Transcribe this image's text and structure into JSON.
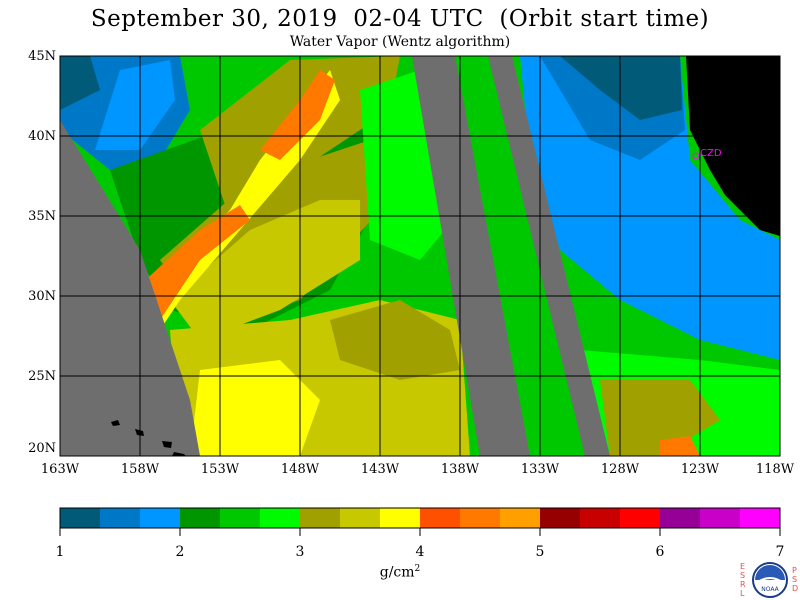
{
  "title": "September 30, 2019  02-04 UTC  (Orbit start time)",
  "subtitle": "Water Vapor (Wentz algorithm)",
  "map": {
    "lat_labels": [
      "45N",
      "40N",
      "35N",
      "30N",
      "25N",
      "20N"
    ],
    "lon_labels": [
      "163W",
      "158W",
      "153W",
      "148W",
      "143W",
      "138W",
      "133W",
      "128W",
      "123W",
      "118W"
    ],
    "lat_range": [
      20,
      45
    ],
    "lon_range": [
      -163,
      -118
    ],
    "station_label": "CZD",
    "colors": {
      "no_data": "#6e6e6e",
      "land": "#000000",
      "grid": "#000000",
      "station": "#ff00ff"
    }
  },
  "colorbar": {
    "min": 1,
    "max": 7,
    "ticks": [
      "1",
      "2",
      "3",
      "4",
      "5",
      "6",
      "7"
    ],
    "unit_base": "g/cm",
    "unit_sup": "2",
    "colors": [
      "#005a78",
      "#0078c8",
      "#0096ff",
      "#009600",
      "#00c800",
      "#00fa00",
      "#a0a000",
      "#c8c800",
      "#ffff00",
      "#ff5000",
      "#ff7800",
      "#ffa000",
      "#960000",
      "#c80000",
      "#ff0000",
      "#960096",
      "#c800c8",
      "#ff00ff"
    ]
  },
  "logo": {
    "left_letters": [
      "E",
      "S",
      "R",
      "L"
    ],
    "right_letters": [
      "P",
      "S",
      "D"
    ],
    "center_text": "NOAA"
  }
}
